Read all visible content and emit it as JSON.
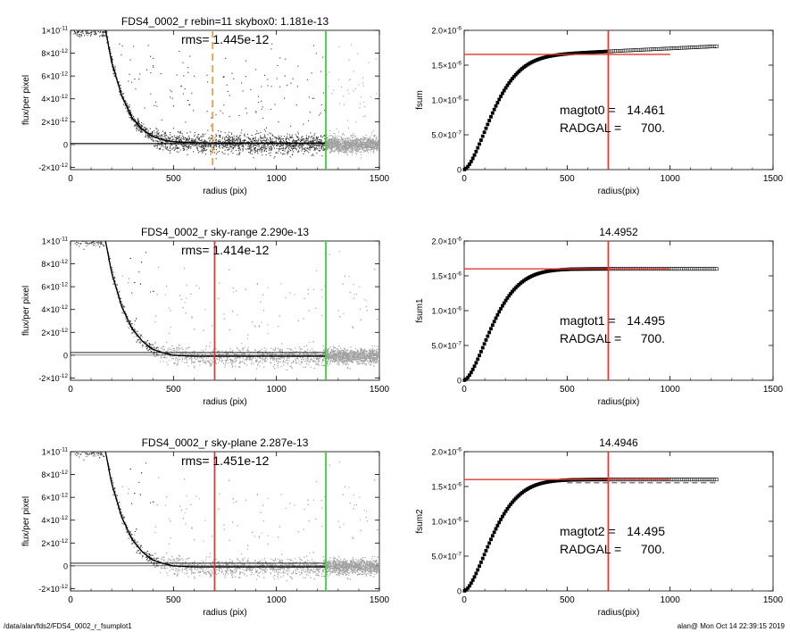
{
  "footer": {
    "path": "/data/alan/fds2/FDS4_0002_r_fsumplot1",
    "user_time": "alan@  Mon Oct 14 22:39:15 2019"
  },
  "colors": {
    "orange_dashed": "#f0a040",
    "red": "#e03a2f",
    "green": "#3ad13a",
    "points_dark": "#333333",
    "points_grey": "#a0a0a0"
  },
  "chart_data": [
    {
      "type": "scatter",
      "title": "FDS4_0002_r rebin=11    skybox0:  1.181e-13",
      "annotation": "rms= 1.445e-12",
      "xlabel": "radius (pix)",
      "ylabel": "flux/per pixel",
      "xlim": [
        0,
        1500
      ],
      "ylim": [
        -2.2e-12,
        1e-11
      ],
      "x_ticks": [
        "0",
        "500",
        "1000",
        "1500"
      ],
      "y_ticks": [
        {
          "base": "-2×10",
          "exp": "-12",
          "v": -2e-12
        },
        {
          "base": "0",
          "exp": "",
          "v": 0
        },
        {
          "base": "2×10",
          "exp": "-12",
          "v": 2e-12
        },
        {
          "base": "4×10",
          "exp": "-12",
          "v": 4e-12
        },
        {
          "base": "6×10",
          "exp": "-12",
          "v": 6e-12
        },
        {
          "base": "8×10",
          "exp": "-12",
          "v": 8e-12
        },
        {
          "base": "1×10",
          "exp": "-11",
          "v": 1e-11
        }
      ],
      "profile": [
        [
          170,
          1e-11
        ],
        [
          200,
          7.2e-12
        ],
        [
          250,
          4.2e-12
        ],
        [
          300,
          2.3e-12
        ],
        [
          350,
          1.3e-12
        ],
        [
          400,
          7e-13
        ],
        [
          450,
          4e-13
        ],
        [
          500,
          2.5e-13
        ],
        [
          600,
          1.5e-13
        ],
        [
          700,
          1.2e-13
        ],
        [
          1000,
          1.2e-13
        ],
        [
          1240,
          1.2e-13
        ]
      ],
      "sky_level": 1.181e-13,
      "vlines": [
        {
          "x": 690,
          "color": "orange_dashed"
        },
        {
          "x": 1240,
          "color": "green"
        }
      ],
      "scatter_style": "mixed"
    },
    {
      "type": "scatter",
      "title": "",
      "annotation": "",
      "text_lines": [
        {
          "label": "magtot0 =",
          "value": "14.461"
        },
        {
          "label": "RADGAL =",
          "value": "700."
        }
      ],
      "xlabel": "radius(pix)",
      "ylabel": "fsum",
      "xlim": [
        0,
        1500
      ],
      "ylim": [
        0,
        2e-06
      ],
      "x_ticks": [
        "0",
        "500",
        "1000",
        "1500"
      ],
      "y_ticks": [
        {
          "base": "0",
          "exp": "",
          "v": 0
        },
        {
          "base": "5.0×10",
          "exp": "-7",
          "v": 5e-07
        },
        {
          "base": "1.0×10",
          "exp": "-6",
          "v": 1e-06
        },
        {
          "base": "1.5×10",
          "exp": "-6",
          "v": 1.5e-06
        },
        {
          "base": "2.0×10",
          "exp": "-6",
          "v": 2e-06
        }
      ],
      "curve_end": 1230,
      "plateau": 1.6e-06,
      "slope_after": 1.4e-10,
      "hline": 1.655e-06,
      "hline_end": 1000,
      "vline": 700,
      "dashed_tail": false
    },
    {
      "type": "scatter",
      "title": "FDS4_0002_r sky-range  2.290e-13",
      "annotation": "rms= 1.414e-12",
      "xlabel": "radius (pix)",
      "ylabel": "flux/per pixel",
      "xlim": [
        0,
        1500
      ],
      "ylim": [
        -2.2e-12,
        1e-11
      ],
      "x_ticks": [
        "0",
        "500",
        "1000",
        "1500"
      ],
      "y_ticks": [
        {
          "base": "-2×10",
          "exp": "-12",
          "v": -2e-12
        },
        {
          "base": "0",
          "exp": "",
          "v": 0
        },
        {
          "base": "2×10",
          "exp": "-12",
          "v": 2e-12
        },
        {
          "base": "4×10",
          "exp": "-12",
          "v": 4e-12
        },
        {
          "base": "6×10",
          "exp": "-12",
          "v": 6e-12
        },
        {
          "base": "8×10",
          "exp": "-12",
          "v": 8e-12
        },
        {
          "base": "1×10",
          "exp": "-11",
          "v": 1e-11
        }
      ],
      "profile": [
        [
          170,
          1e-11
        ],
        [
          200,
          7.2e-12
        ],
        [
          250,
          4.2e-12
        ],
        [
          300,
          2.3e-12
        ],
        [
          350,
          1.2e-12
        ],
        [
          400,
          5e-13
        ],
        [
          450,
          2e-13
        ],
        [
          500,
          0
        ],
        [
          600,
          -1e-13
        ],
        [
          700,
          -1e-13
        ],
        [
          1000,
          -1e-13
        ],
        [
          1240,
          -1e-13
        ]
      ],
      "sky_level": 2.29e-13,
      "vlines": [
        {
          "x": 700,
          "color": "red"
        },
        {
          "x": 1240,
          "color": "green"
        }
      ],
      "scatter_style": "grey"
    },
    {
      "type": "scatter",
      "title": "14.4952",
      "annotation": "",
      "text_lines": [
        {
          "label": "magtot1 =",
          "value": "14.495"
        },
        {
          "label": "RADGAL =",
          "value": "700."
        }
      ],
      "xlabel": "radius(pix)",
      "ylabel": "fsum1",
      "xlim": [
        0,
        1500
      ],
      "ylim": [
        0,
        2e-06
      ],
      "x_ticks": [
        "0",
        "500",
        "1000",
        "1500"
      ],
      "y_ticks": [
        {
          "base": "0",
          "exp": "",
          "v": 0
        },
        {
          "base": "5.0×10",
          "exp": "-7",
          "v": 5e-07
        },
        {
          "base": "1.0×10",
          "exp": "-6",
          "v": 1e-06
        },
        {
          "base": "1.5×10",
          "exp": "-6",
          "v": 1.5e-06
        },
        {
          "base": "2.0×10",
          "exp": "-6",
          "v": 2e-06
        }
      ],
      "curve_end": 1230,
      "plateau": 1.6e-06,
      "slope_after": 0,
      "hline": 1.6e-06,
      "hline_end": 1000,
      "vline": 700,
      "dashed_tail": false
    },
    {
      "type": "scatter",
      "title": "FDS4_0002_r sky-plane  2.287e-13",
      "annotation": "rms= 1.451e-12",
      "xlabel": "radius (pix)",
      "ylabel": "flux/per pixel",
      "xlim": [
        0,
        1500
      ],
      "ylim": [
        -2.2e-12,
        1e-11
      ],
      "x_ticks": [
        "0",
        "500",
        "1000",
        "1500"
      ],
      "y_ticks": [
        {
          "base": "-2×10",
          "exp": "-12",
          "v": -2e-12
        },
        {
          "base": "0",
          "exp": "",
          "v": 0
        },
        {
          "base": "2×10",
          "exp": "-12",
          "v": 2e-12
        },
        {
          "base": "4×10",
          "exp": "-12",
          "v": 4e-12
        },
        {
          "base": "6×10",
          "exp": "-12",
          "v": 6e-12
        },
        {
          "base": "8×10",
          "exp": "-12",
          "v": 8e-12
        },
        {
          "base": "1×10",
          "exp": "-11",
          "v": 1e-11
        }
      ],
      "profile": [
        [
          170,
          1e-11
        ],
        [
          200,
          7.2e-12
        ],
        [
          250,
          4.2e-12
        ],
        [
          300,
          2.3e-12
        ],
        [
          350,
          1.2e-12
        ],
        [
          400,
          5e-13
        ],
        [
          450,
          2e-13
        ],
        [
          500,
          0
        ],
        [
          600,
          -1e-13
        ],
        [
          700,
          -1e-13
        ],
        [
          1000,
          -1e-13
        ],
        [
          1240,
          -1e-13
        ]
      ],
      "sky_level": 2.287e-13,
      "vlines": [
        {
          "x": 700,
          "color": "red"
        },
        {
          "x": 1240,
          "color": "green"
        }
      ],
      "scatter_style": "grey"
    },
    {
      "type": "scatter",
      "title": "14.4946",
      "annotation": "",
      "text_lines": [
        {
          "label": "magtot2 =",
          "value": "14.495"
        },
        {
          "label": "RADGAL =",
          "value": "700."
        }
      ],
      "xlabel": "radius(pix)",
      "ylabel": "fsum2",
      "xlim": [
        0,
        1500
      ],
      "ylim": [
        0,
        2e-06
      ],
      "x_ticks": [
        "0",
        "500",
        "1000",
        "1500"
      ],
      "y_ticks": [
        {
          "base": "0",
          "exp": "",
          "v": 0
        },
        {
          "base": "5.0×10",
          "exp": "-7",
          "v": 5e-07
        },
        {
          "base": "1.0×10",
          "exp": "-6",
          "v": 1e-06
        },
        {
          "base": "1.5×10",
          "exp": "-6",
          "v": 1.5e-06
        },
        {
          "base": "2.0×10",
          "exp": "-6",
          "v": 2e-06
        }
      ],
      "curve_end": 1230,
      "plateau": 1.6e-06,
      "slope_after": 0,
      "hline": 1.6e-06,
      "hline_end": 1000,
      "vline": 700,
      "dashed_tail": true
    }
  ]
}
